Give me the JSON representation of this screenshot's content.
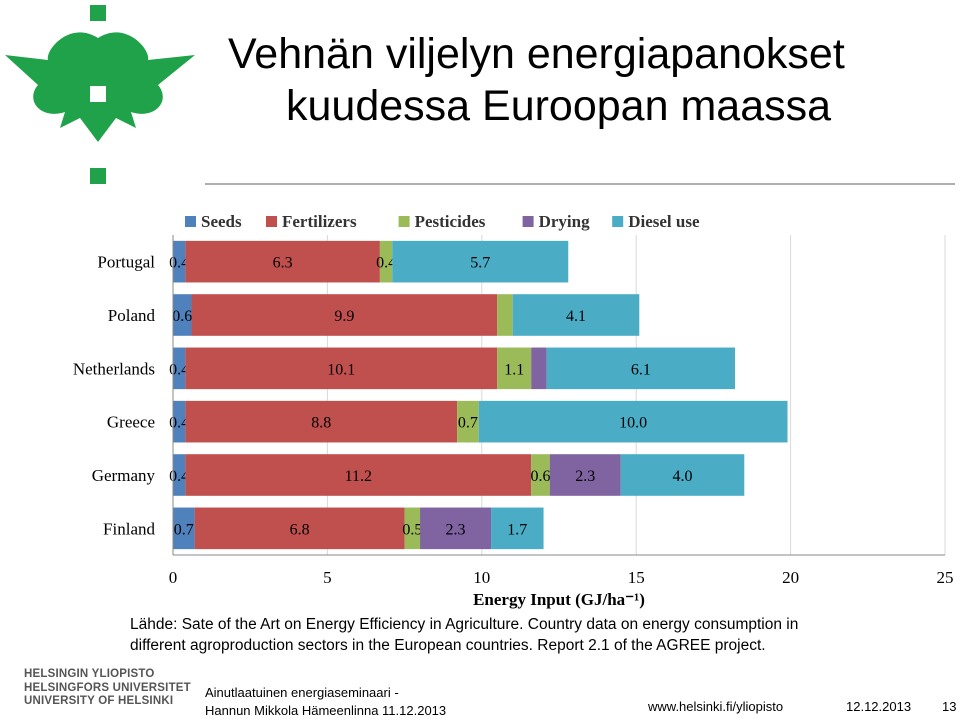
{
  "slide": {
    "title_line1": "Vehnän viljelyn energiapanokset",
    "title_line2": "kuudessa Euroopan maassa",
    "caption_line1": "Lähde: Sate of the Art on Energy Efficiency in Agriculture. Country data on energy consumption in",
    "caption_line2": "different agroproduction sectors in the European countries. Report 2.1 of the AGREE project."
  },
  "footer": {
    "university_lines": [
      "HELSINGIN YLIOPISTO",
      "HELSINGFORS UNIVERSITET",
      "UNIVERSITY OF HELSINKI"
    ],
    "event_line1": "Ainutlaatuinen energiaseminaari -",
    "event_line2": "Hannun Mikkola Hämeenlinna 11.12.2013",
    "url": "www.helsinki.fi/yliopisto",
    "date": "12.12.2013",
    "page_number": "13"
  },
  "colors": {
    "logo": "#1fa24a",
    "Seeds": "#4f81bd",
    "Fertilizers": "#c0504d",
    "Pesticides": "#9bbb59",
    "Drying": "#8064a2",
    "Diesel use": "#4bacc6"
  },
  "chart_data": {
    "type": "bar",
    "orientation": "horizontal",
    "stacked": true,
    "xlabel": "Energy Input (GJ/ha⁻¹)",
    "xlim": [
      0,
      25
    ],
    "xticks": [
      0,
      5,
      10,
      15,
      20,
      25
    ],
    "grid": true,
    "legend_position": "top",
    "categories": [
      "Portugal",
      "Poland",
      "Netherlands",
      "Greece",
      "Germany",
      "Finland"
    ],
    "series": [
      {
        "name": "Seeds",
        "values": [
          0.4,
          0.6,
          0.4,
          0.4,
          0.4,
          0.7
        ],
        "labels": [
          "0.4",
          "0.6",
          "0.4",
          "0.4",
          "0.4",
          "0.7"
        ]
      },
      {
        "name": "Fertilizers",
        "values": [
          6.3,
          9.9,
          10.1,
          8.8,
          11.2,
          6.8
        ],
        "labels": [
          "6.3",
          "9.9",
          "10.1",
          "8.8",
          "11.2",
          "6.8"
        ]
      },
      {
        "name": "Pesticides",
        "values": [
          0.4,
          0.5,
          1.1,
          0.7,
          0.6,
          0.5
        ],
        "labels": [
          "0.4",
          "",
          "1.1",
          "0.7",
          "0.6",
          "0.5"
        ]
      },
      {
        "name": "Drying",
        "values": [
          0,
          0,
          0.5,
          0,
          2.3,
          2.3
        ],
        "labels": [
          "",
          "",
          "",
          "",
          "2.3",
          "2.3"
        ]
      },
      {
        "name": "Diesel use",
        "values": [
          5.7,
          4.1,
          6.1,
          10.0,
          4.0,
          1.7
        ],
        "labels": [
          "5.7",
          "4.1",
          "6.1",
          "10.0",
          "4.0",
          "1.7"
        ]
      }
    ]
  }
}
